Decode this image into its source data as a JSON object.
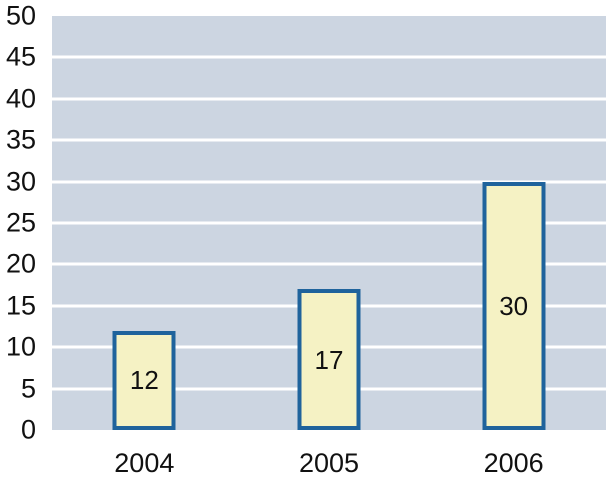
{
  "chart_data": {
    "type": "bar",
    "title": "",
    "xlabel": "",
    "ylabel": "",
    "categories": [
      "2004",
      "2005",
      "2006"
    ],
    "values": [
      12,
      17,
      30
    ],
    "value_labels": [
      "12",
      "17",
      "30"
    ],
    "ylim": [
      0,
      50
    ],
    "ytick_step": 5,
    "yticks": [
      0,
      5,
      10,
      15,
      20,
      25,
      30,
      35,
      40,
      45,
      50
    ],
    "grid": true,
    "legend_position": "none",
    "colors": {
      "plot_background": "#ccd5e1",
      "gridline": "#ffffff",
      "bar_fill": "#f5f2c4",
      "bar_border": "#1f639c",
      "text": "#111111",
      "page_background": "#ffffff"
    }
  }
}
